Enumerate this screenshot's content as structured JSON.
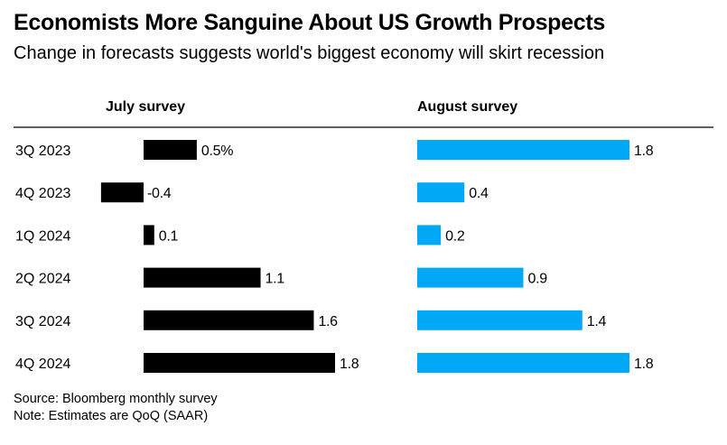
{
  "title": "Economists More Sanguine About US Growth Prospects",
  "subtitle": "Change in forecasts suggests world's biggest economy will skirt recession",
  "footer": {
    "source": "Source: Bloomberg monthly survey",
    "note": "Note: Estimates are QoQ (SAAR)"
  },
  "colors": {
    "july": "#000000",
    "august": "#00a8f5",
    "text": "#000000"
  },
  "chart_data": {
    "type": "bar",
    "orientation": "horizontal",
    "categories": [
      "3Q 2023",
      "4Q 2023",
      "1Q 2024",
      "2Q 2024",
      "3Q 2024",
      "4Q 2024"
    ],
    "series": [
      {
        "name": "July survey",
        "values": [
          0.5,
          -0.4,
          0.1,
          1.1,
          1.6,
          1.8
        ],
        "labels": [
          "0.5%",
          "-0.4",
          "0.1",
          "1.1",
          "1.6",
          "1.8"
        ]
      },
      {
        "name": "August survey",
        "values": [
          1.8,
          0.4,
          0.2,
          0.9,
          1.4,
          1.8
        ],
        "labels": [
          "1.8",
          "0.4",
          "0.2",
          "0.9",
          "1.4",
          "1.8"
        ]
      }
    ],
    "layout": "side-by-side panels",
    "grid": false,
    "legend": "panel headers"
  }
}
